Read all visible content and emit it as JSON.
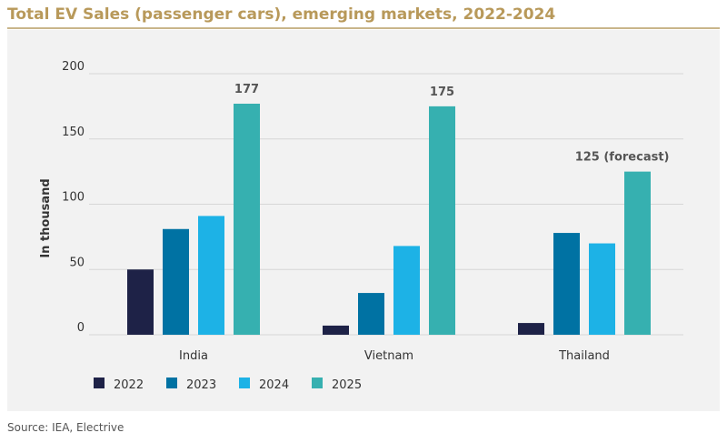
{
  "title": "Total EV Sales (passenger cars), emerging markets, 2022-2024",
  "source": "Source: IEA, Electrive",
  "chart_data": {
    "type": "bar",
    "title": "Total EV Sales (passenger cars), emerging markets, 2022-2024",
    "ylabel": "In thousand",
    "xlabel": "",
    "ylim": [
      0,
      200
    ],
    "yticks": [
      0,
      50,
      100,
      150,
      200
    ],
    "grid": true,
    "legend_position": "bottom-left",
    "categories": [
      "India",
      "Vietnam",
      "Thailand"
    ],
    "series": [
      {
        "name": "2022",
        "color": "#1e2247",
        "values": [
          50,
          7,
          9
        ]
      },
      {
        "name": "2023",
        "color": "#0072a3",
        "values": [
          81,
          32,
          78
        ]
      },
      {
        "name": "2024",
        "color": "#1db2e6",
        "values": [
          91,
          68,
          70
        ]
      },
      {
        "name": "2025",
        "color": "#36b0b0",
        "values": [
          177,
          175,
          125
        ]
      }
    ],
    "annotations": [
      {
        "category": "India",
        "series": "2025",
        "text": "177"
      },
      {
        "category": "Vietnam",
        "series": "2025",
        "text": "175"
      },
      {
        "category": "Thailand",
        "series": "2025",
        "text": "125 (forecast)"
      }
    ]
  }
}
